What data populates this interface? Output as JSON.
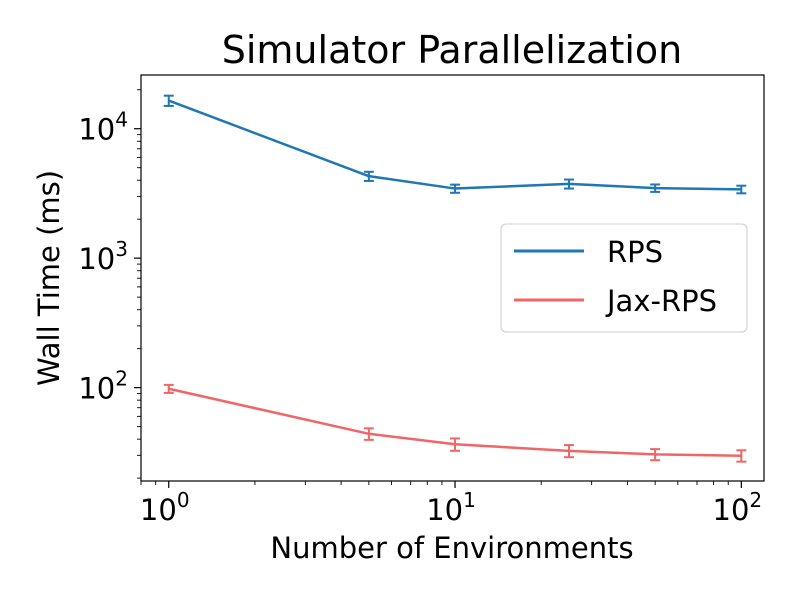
{
  "chart_data": {
    "type": "line",
    "title": "Simulator Parallelization",
    "xlabel": "Number of Environments",
    "ylabel": "Wall Time (ms)",
    "xscale": "log",
    "yscale": "log",
    "xlim": [
      0.8,
      120
    ],
    "ylim": [
      19,
      26000
    ],
    "x": [
      1,
      5,
      10,
      25,
      50,
      100
    ],
    "x_ticks": [
      {
        "value": 1,
        "base": "10",
        "exp": "0"
      },
      {
        "value": 10,
        "base": "10",
        "exp": "1"
      },
      {
        "value": 100,
        "base": "10",
        "exp": "2"
      }
    ],
    "y_ticks": [
      {
        "value": 100,
        "base": "10",
        "exp": "2"
      },
      {
        "value": 1000,
        "base": "10",
        "exp": "3"
      },
      {
        "value": 10000,
        "base": "10",
        "exp": "4"
      }
    ],
    "series": [
      {
        "name": "RPS",
        "color": "#1f77b4",
        "values": [
          16500,
          4300,
          3450,
          3750,
          3480,
          3400
        ],
        "err": [
          1500,
          350,
          250,
          300,
          230,
          230
        ]
      },
      {
        "name": "Jax-RPS",
        "color": "#f06666",
        "values": [
          98,
          44,
          36.5,
          32.5,
          30.5,
          29.8
        ],
        "err": [
          7,
          4.5,
          4,
          3.5,
          3,
          3
        ]
      }
    ],
    "legend": "center-right",
    "grid": false
  }
}
